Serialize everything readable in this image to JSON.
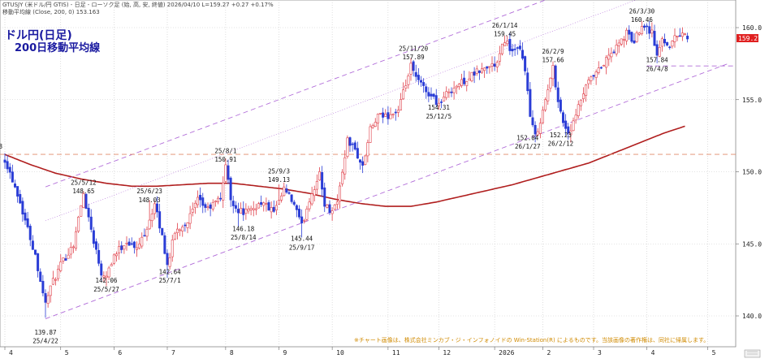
{
  "header": {
    "line1": "GTUSJY (米ドル/円 GTIS) - 日足 - ローソク足 (始, 高, 安, 終値)  2026/04/10 L=159.27 +0.27 +0.17%",
    "line2": "移動平均線 (Close, 200, 0) 153.163"
  },
  "chart_title": {
    "line1": "ドル円(日足)",
    "line2": "200日移動平均線"
  },
  "footer_note": "※チャート画像は、株式会社ミンカブ・ジ・インフォノイドの Win-Station(R) によるものです。当該画像の著作権は、同社に帰属します。",
  "colors": {
    "up": "#e0404a",
    "down": "#2a3dd6",
    "ma": "#b01e1e",
    "channel": "#b06ad8",
    "hline": "#e08a6a",
    "price_box": "#e02020"
  },
  "chart_data": {
    "type": "candlestick",
    "ylim": [
      137.5,
      162.5
    ],
    "y_ticks": [
      140.0,
      145.0,
      150.0,
      155.0,
      160.0
    ],
    "last_price_label": "159.27",
    "last_price": 159.27,
    "months": [
      {
        "label": "4",
        "start": 0
      },
      {
        "label": "5",
        "start": 22
      },
      {
        "label": "6",
        "start": 43
      },
      {
        "label": "7",
        "start": 64
      },
      {
        "label": "8",
        "start": 87
      },
      {
        "label": "9",
        "start": 108
      },
      {
        "label": "10",
        "start": 129
      },
      {
        "label": "11",
        "start": 151
      },
      {
        "label": "12",
        "start": 171
      },
      {
        "label": "2026",
        "start": 193
      },
      {
        "label": "2",
        "start": 212
      },
      {
        "label": "3",
        "start": 232
      },
      {
        "label": "4",
        "start": 253
      },
      {
        "label": "5",
        "start": 277
      }
    ],
    "bar_count": 270,
    "close_anchors": [
      [
        0,
        150.9
      ],
      [
        5,
        148.5
      ],
      [
        12,
        144.2
      ],
      [
        16,
        140.8
      ],
      [
        17,
        141.6
      ],
      [
        22,
        143.5
      ],
      [
        27,
        145.0
      ],
      [
        31,
        148.5
      ],
      [
        34,
        146.0
      ],
      [
        38,
        143.0
      ],
      [
        40,
        142.9
      ],
      [
        43,
        144.2
      ],
      [
        48,
        145.2
      ],
      [
        52,
        144.6
      ],
      [
        56,
        146.2
      ],
      [
        59,
        147.7
      ],
      [
        62,
        145.5
      ],
      [
        64,
        143.5
      ],
      [
        67,
        145.8
      ],
      [
        72,
        146.6
      ],
      [
        76,
        148.0
      ],
      [
        80,
        147.4
      ],
      [
        85,
        148.2
      ],
      [
        87,
        150.5
      ],
      [
        89,
        148.1
      ],
      [
        92,
        147.3
      ],
      [
        96,
        147.2
      ],
      [
        101,
        147.9
      ],
      [
        106,
        147.2
      ],
      [
        108,
        147.8
      ],
      [
        110,
        148.8
      ],
      [
        114,
        147.7
      ],
      [
        117,
        146.2
      ],
      [
        120,
        148.1
      ],
      [
        124,
        149.8
      ],
      [
        126,
        147.8
      ],
      [
        128,
        147.3
      ],
      [
        131,
        147.9
      ],
      [
        135,
        152.2
      ],
      [
        138,
        151.5
      ],
      [
        141,
        150.3
      ],
      [
        144,
        152.9
      ],
      [
        147,
        153.8
      ],
      [
        151,
        153.9
      ],
      [
        155,
        154.2
      ],
      [
        160,
        157.3
      ],
      [
        162,
        156.5
      ],
      [
        166,
        155.6
      ],
      [
        169,
        155.1
      ],
      [
        171,
        154.7
      ],
      [
        175,
        155.6
      ],
      [
        180,
        156.2
      ],
      [
        186,
        156.9
      ],
      [
        191,
        157.3
      ],
      [
        194,
        157.5
      ],
      [
        197,
        159.2
      ],
      [
        200,
        158.3
      ],
      [
        203,
        158.4
      ],
      [
        205,
        157.2
      ],
      [
        207,
        153.8
      ],
      [
        209,
        152.4
      ],
      [
        212,
        154.2
      ],
      [
        216,
        157.2
      ],
      [
        218,
        155.0
      ],
      [
        220,
        153.4
      ],
      [
        222,
        152.7
      ],
      [
        224,
        153.3
      ],
      [
        227,
        155.0
      ],
      [
        230,
        156.2
      ],
      [
        234,
        157.0
      ],
      [
        238,
        158.0
      ],
      [
        241,
        158.6
      ],
      [
        245,
        159.6
      ],
      [
        248,
        159.0
      ],
      [
        251,
        160.3
      ],
      [
        255,
        159.7
      ],
      [
        257,
        158.0
      ],
      [
        259,
        159.2
      ],
      [
        262,
        158.8
      ],
      [
        265,
        159.5
      ],
      [
        267,
        159.7
      ],
      [
        269,
        159.27
      ]
    ],
    "ma200": [
      [
        0,
        151.2
      ],
      [
        10,
        150.5
      ],
      [
        20,
        149.9
      ],
      [
        30,
        149.5
      ],
      [
        40,
        149.2
      ],
      [
        50,
        149.0
      ],
      [
        60,
        149.0
      ],
      [
        70,
        149.1
      ],
      [
        80,
        149.2
      ],
      [
        90,
        149.2
      ],
      [
        100,
        149.0
      ],
      [
        110,
        148.8
      ],
      [
        120,
        148.5
      ],
      [
        130,
        148.1
      ],
      [
        140,
        147.8
      ],
      [
        150,
        147.6
      ],
      [
        160,
        147.6
      ],
      [
        170,
        147.9
      ],
      [
        180,
        148.3
      ],
      [
        190,
        148.7
      ],
      [
        200,
        149.1
      ],
      [
        210,
        149.6
      ],
      [
        220,
        150.1
      ],
      [
        230,
        150.6
      ],
      [
        240,
        151.3
      ],
      [
        250,
        152.0
      ],
      [
        260,
        152.7
      ],
      [
        268,
        153.16
      ]
    ],
    "channel_lines": [
      {
        "x0": 16,
        "y0": 139.8,
        "x1": 285,
        "y1": 157.5
      },
      {
        "x0": 16,
        "y0": 146.6,
        "x1": 285,
        "y1": 164.3
      },
      {
        "x0": 16,
        "y0": 148.95,
        "x1": 285,
        "y1": 166.65
      }
    ],
    "hlines": [
      {
        "y": 151.21,
        "style": "dashed",
        "kind": "orange"
      },
      {
        "y": 157.34,
        "x_from": 253,
        "style": "dashed",
        "kind": "purple"
      }
    ],
    "annotations": [
      {
        "x": -6,
        "y": 151.6,
        "text": "25/3/28"
      },
      {
        "x": -6,
        "y": 151.0,
        "text": "151.21"
      },
      {
        "x": 16,
        "y": 138.7,
        "text": "139.87"
      },
      {
        "x": 16,
        "y": 138.1,
        "text": "25/4/22"
      },
      {
        "x": 31,
        "y": 149.1,
        "text": "25/5/12"
      },
      {
        "x": 31,
        "y": 148.5,
        "text": "148.65"
      },
      {
        "x": 40,
        "y": 142.3,
        "text": "142.06"
      },
      {
        "x": 40,
        "y": 141.7,
        "text": "25/5/27"
      },
      {
        "x": 57,
        "y": 148.5,
        "text": "25/6/23"
      },
      {
        "x": 57,
        "y": 147.9,
        "text": "148.03"
      },
      {
        "x": 65,
        "y": 142.9,
        "text": "142.64"
      },
      {
        "x": 65,
        "y": 142.3,
        "text": "25/7/1"
      },
      {
        "x": 87,
        "y": 151.3,
        "text": "25/8/1"
      },
      {
        "x": 87,
        "y": 150.7,
        "text": "150.91"
      },
      {
        "x": 94,
        "y": 145.9,
        "text": "146.18"
      },
      {
        "x": 94,
        "y": 145.3,
        "text": "25/8/14"
      },
      {
        "x": 108,
        "y": 149.9,
        "text": "25/9/3"
      },
      {
        "x": 108,
        "y": 149.3,
        "text": "149.13"
      },
      {
        "x": 117,
        "y": 145.2,
        "text": "145.44"
      },
      {
        "x": 117,
        "y": 144.6,
        "text": "25/9/17"
      },
      {
        "x": 161,
        "y": 158.4,
        "text": "25/11/20"
      },
      {
        "x": 161,
        "y": 157.8,
        "text": "157.89"
      },
      {
        "x": 171,
        "y": 154.3,
        "text": "154.31"
      },
      {
        "x": 171,
        "y": 153.7,
        "text": "25/12/5"
      },
      {
        "x": 197,
        "y": 160.0,
        "text": "26/1/14"
      },
      {
        "x": 197,
        "y": 159.4,
        "text": "159.45"
      },
      {
        "x": 206,
        "y": 152.2,
        "text": "152.04"
      },
      {
        "x": 206,
        "y": 151.6,
        "text": "26/1/27"
      },
      {
        "x": 216,
        "y": 158.2,
        "text": "26/2/9"
      },
      {
        "x": 216,
        "y": 157.6,
        "text": "157.66"
      },
      {
        "x": 219,
        "y": 152.4,
        "text": "152.23"
      },
      {
        "x": 219,
        "y": 151.8,
        "text": "26/2/12"
      },
      {
        "x": 251,
        "y": 161.0,
        "text": "26/3/30"
      },
      {
        "x": 251,
        "y": 160.4,
        "text": "160.46"
      },
      {
        "x": 257,
        "y": 157.6,
        "text": "157.84"
      },
      {
        "x": 257,
        "y": 157.0,
        "text": "26/4/8"
      }
    ]
  }
}
